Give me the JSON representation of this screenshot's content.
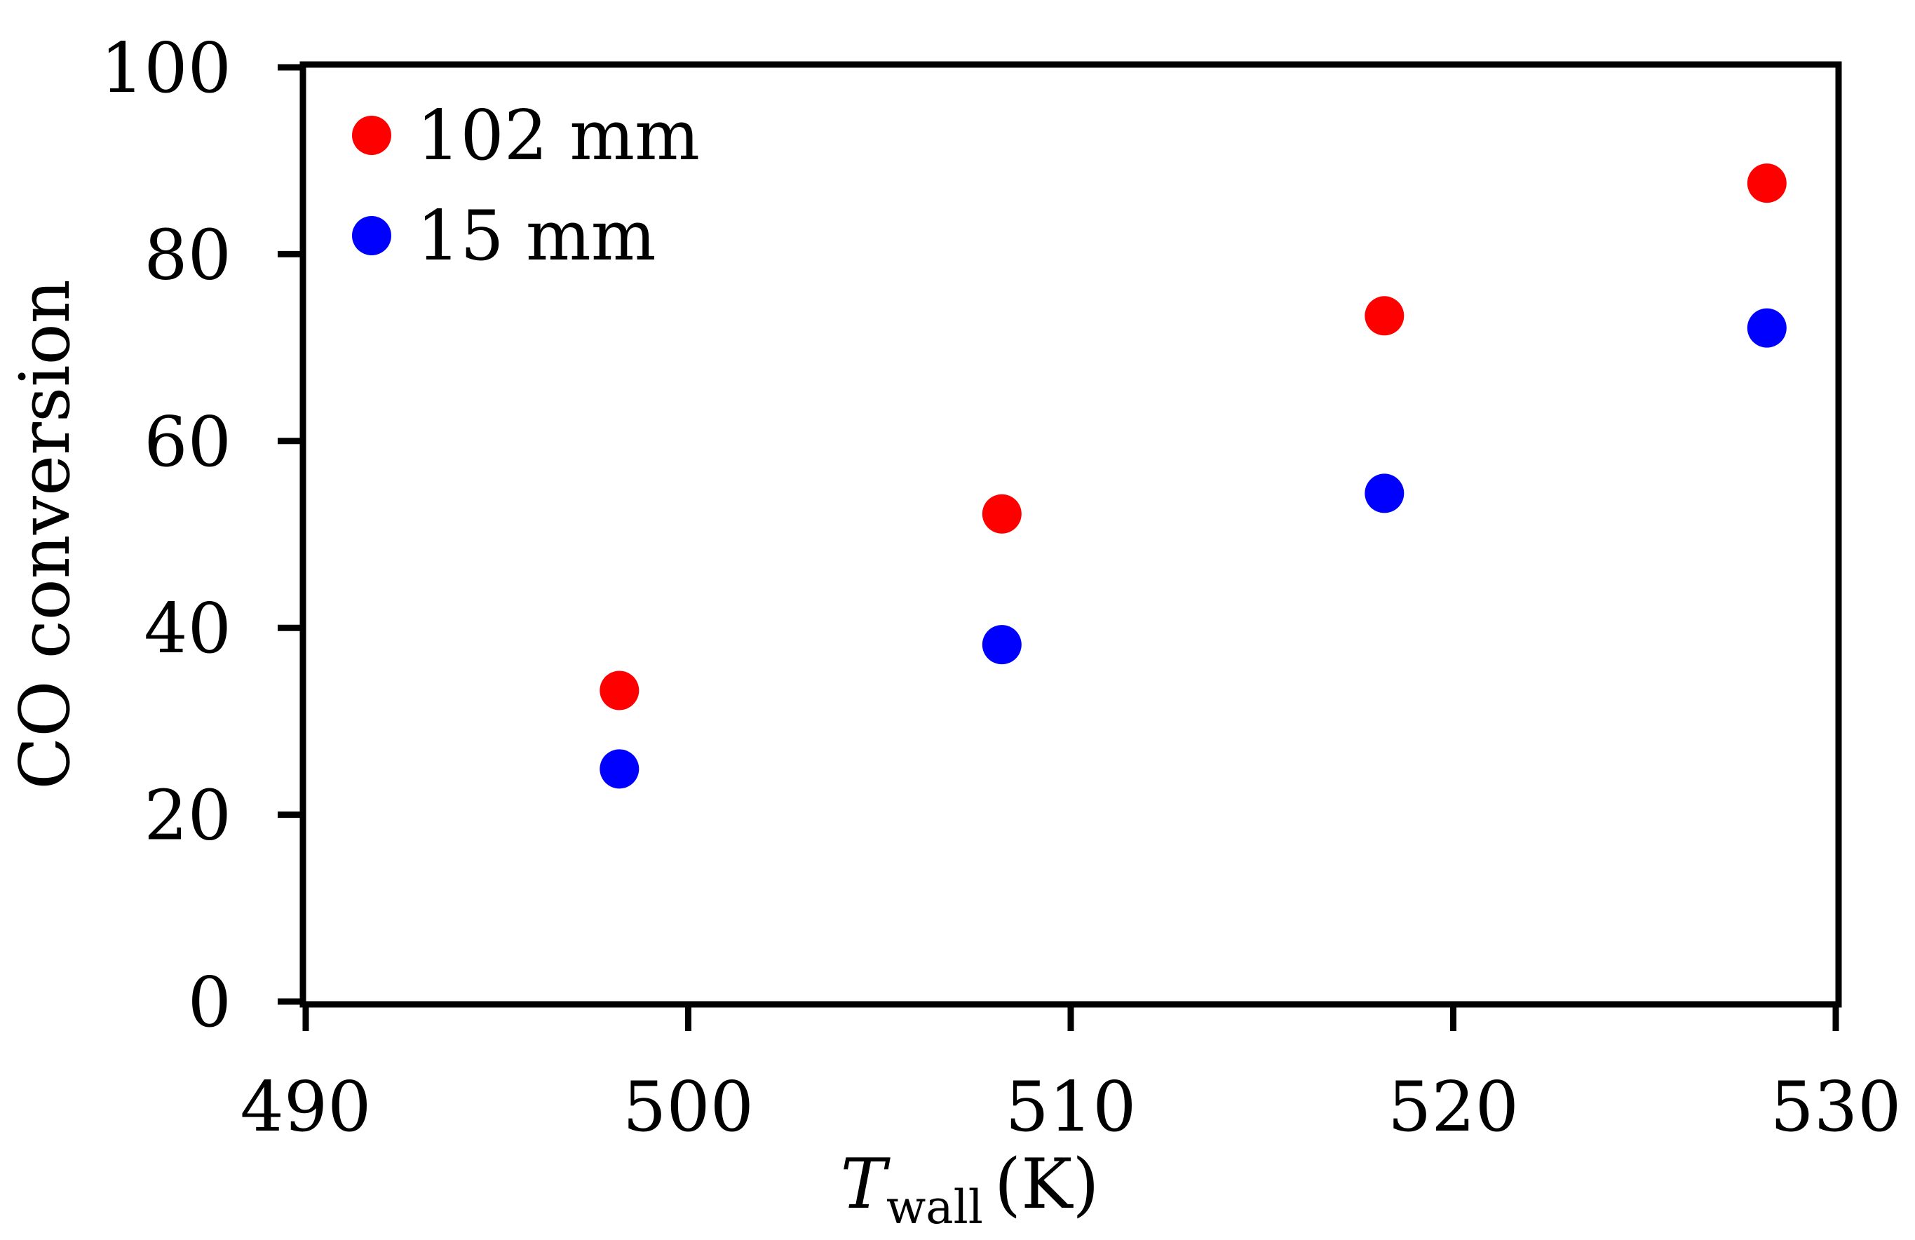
{
  "chart_data": {
    "type": "scatter",
    "title": "",
    "xlabel": {
      "main": "T",
      "subscript": "wall",
      "unit": "(K)"
    },
    "ylabel": "CO conversion",
    "xlim": [
      490,
      530
    ],
    "ylim": [
      0,
      100
    ],
    "xticks": [
      490,
      500,
      510,
      520,
      530
    ],
    "yticks": [
      0,
      20,
      40,
      60,
      80,
      100
    ],
    "xtick_labels": [
      "490",
      "500",
      "510",
      "520",
      "530"
    ],
    "ytick_labels": [
      "0",
      "20",
      "40",
      "60",
      "80",
      "100"
    ],
    "grid": false,
    "legend_position": "top-left",
    "series": [
      {
        "name": "102 mm",
        "color": "#ff0000",
        "x": [
          498.2,
          508.2,
          518.2,
          528.2
        ],
        "y": [
          33.3,
          52.2,
          73.4,
          87.6
        ]
      },
      {
        "name": "15 mm",
        "color": "#0000ff",
        "x": [
          498.2,
          508.2,
          518.2,
          528.2
        ],
        "y": [
          24.9,
          38.2,
          54.4,
          72.1
        ]
      }
    ]
  }
}
